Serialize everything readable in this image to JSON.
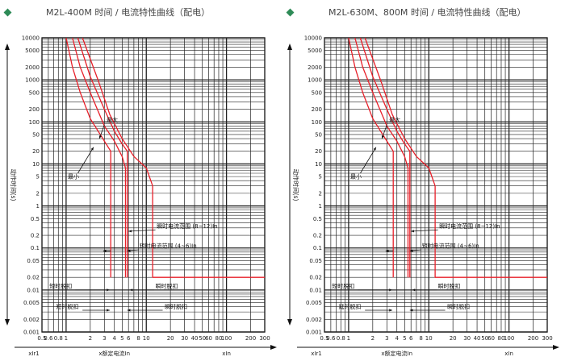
{
  "colors": {
    "grid": "#222222",
    "curve": "#e8202a",
    "annotation": "#111111",
    "bullet": "#2e8b57"
  },
  "chart_data": [
    {
      "type": "line",
      "title": "M2L-400M 时间 / 电流特性曲线（配电）",
      "ylabel": "动作时间(s)",
      "xlabel": "x额定电流In",
      "xlabel_left": "xIr1",
      "xlabel_right": "xIn",
      "x_scale": "log",
      "y_scale": "log",
      "xlim": [
        0.5,
        300
      ],
      "ylim": [
        0.001,
        10000
      ],
      "x_ticks": [
        "0.5",
        "0.6",
        "0.8",
        "1",
        "2",
        "3",
        "4",
        "5",
        "6",
        "8",
        "10",
        "20",
        "30",
        "40",
        "50",
        "60",
        "80",
        "100",
        "200",
        "300"
      ],
      "y_ticks": [
        "0.001",
        "0.002",
        "0.005",
        "0.01",
        "0.02",
        "0.05",
        "0.1",
        "0.2",
        "0.5",
        "1",
        "2",
        "5",
        "10",
        "20",
        "50",
        "100",
        "200",
        "500",
        "1000",
        "2000",
        "5000",
        "10000"
      ],
      "series": [
        {
          "points": [
            [
              1,
              10000
            ],
            [
              1.2,
              2000
            ],
            [
              1.5,
              500
            ],
            [
              2,
              120
            ],
            [
              3,
              35
            ],
            [
              3.6,
              20
            ],
            [
              3.6,
              0.02
            ]
          ]
        },
        {
          "points": [
            [
              1.2,
              10000
            ],
            [
              1.5,
              2000
            ],
            [
              2,
              500
            ],
            [
              3,
              80
            ],
            [
              4,
              35
            ],
            [
              5,
              15
            ],
            [
              5.5,
              8
            ],
            [
              5.5,
              0.02
            ]
          ]
        },
        {
          "points": [
            [
              1.4,
              10000
            ],
            [
              2,
              1200
            ],
            [
              3,
              200
            ],
            [
              4,
              60
            ],
            [
              5,
              30
            ],
            [
              5.8,
              20
            ],
            [
              5.8,
              0.02
            ]
          ]
        },
        {
          "points": [
            [
              1.6,
              10000
            ],
            [
              2.5,
              1000
            ],
            [
              3.5,
              150
            ],
            [
              5,
              40
            ],
            [
              7,
              15
            ],
            [
              10,
              8
            ],
            [
              12,
              3
            ],
            [
              12,
              0.02
            ],
            [
              300,
              0.02
            ]
          ]
        }
      ],
      "annotations": {
        "max": "最大",
        "min": "最小",
        "inst_range": "瞬时电流范围 (8~12)In",
        "short_range": "短时电流范围 (4~6)In",
        "short_trip_upper": "短时脱扣",
        "inst_trip_upper": "瞬时脱扣",
        "short_trip_lower": "短时脱扣",
        "inst_trip_lower": "瞬时脱扣"
      }
    },
    {
      "type": "line",
      "title": "M2L-630M、800M 时间 / 电流特性曲线（配电）",
      "ylabel": "动作时间(s)",
      "xlabel": "x额定电流In",
      "xlabel_left": "xIr1",
      "xlabel_right": "xIn",
      "x_scale": "log",
      "y_scale": "log",
      "xlim": [
        0.5,
        300
      ],
      "ylim": [
        0.001,
        10000
      ],
      "x_ticks": [
        "0.5",
        "0.6",
        "0.8",
        "1",
        "2",
        "3",
        "4",
        "5",
        "6",
        "8",
        "10",
        "20",
        "30",
        "40",
        "50",
        "60",
        "80",
        "100",
        "200",
        "300"
      ],
      "y_ticks": [
        "0.001",
        "0.002",
        "0.005",
        "0.01",
        "0.02",
        "0.05",
        "0.1",
        "0.2",
        "0.5",
        "1",
        "2",
        "5",
        "10",
        "20",
        "50",
        "100",
        "200",
        "500",
        "1000",
        "2000",
        "5000",
        "10000"
      ],
      "series": [
        {
          "points": [
            [
              1,
              10000
            ],
            [
              1.2,
              2000
            ],
            [
              1.5,
              500
            ],
            [
              2,
              120
            ],
            [
              3,
              35
            ],
            [
              3.6,
              20
            ],
            [
              3.6,
              0.02
            ]
          ]
        },
        {
          "points": [
            [
              1.2,
              10000
            ],
            [
              1.5,
              2000
            ],
            [
              2,
              500
            ],
            [
              3,
              80
            ],
            [
              4,
              35
            ],
            [
              5,
              15
            ],
            [
              5.5,
              8
            ],
            [
              5.5,
              0.02
            ]
          ]
        },
        {
          "points": [
            [
              1.4,
              10000
            ],
            [
              2,
              1200
            ],
            [
              3,
              200
            ],
            [
              4,
              60
            ],
            [
              5,
              30
            ],
            [
              5.8,
              20
            ],
            [
              5.8,
              0.02
            ]
          ]
        },
        {
          "points": [
            [
              1.6,
              10000
            ],
            [
              2.5,
              1000
            ],
            [
              3.5,
              150
            ],
            [
              5,
              40
            ],
            [
              7,
              15
            ],
            [
              10,
              8
            ],
            [
              12,
              3
            ],
            [
              12,
              0.02
            ],
            [
              300,
              0.02
            ]
          ]
        }
      ],
      "annotations": {
        "max": "最大",
        "min": "最小",
        "inst_range": "瞬时电流范围 (8~12)In",
        "short_range": "短时电流范围 (4~6)In",
        "short_trip_upper": "短时脱扣",
        "inst_trip_upper": "瞬时脱扣",
        "short_trip_lower": "延时脱扣",
        "inst_trip_lower": "瞬时脱扣"
      }
    }
  ]
}
